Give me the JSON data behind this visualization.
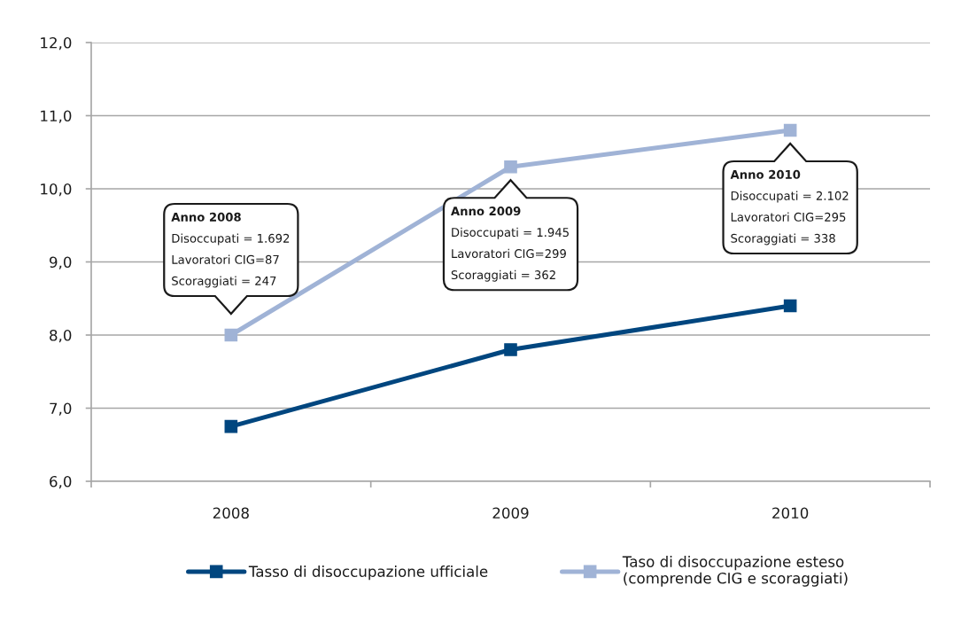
{
  "chart_data": {
    "type": "line",
    "categories": [
      "2008",
      "2009",
      "2010"
    ],
    "series": [
      {
        "name": "Tasso di disoccupazione ufficiale",
        "color": "#00467f",
        "values": [
          6.75,
          7.8,
          8.4
        ]
      },
      {
        "name": "Taso di disoccupazione esteso\n(comprende CIG e scoraggiati)",
        "color": "#a0b3d6",
        "values": [
          8.0,
          10.3,
          10.8
        ]
      }
    ],
    "ylim": [
      6,
      12
    ],
    "yticks": [
      {
        "value": 6,
        "label": "6,0"
      },
      {
        "value": 7,
        "label": "7,0"
      },
      {
        "value": 8,
        "label": "8,0"
      },
      {
        "value": 9,
        "label": "9,0"
      },
      {
        "value": 10,
        "label": "10,0"
      },
      {
        "value": 11,
        "label": "11,0"
      },
      {
        "value": 12,
        "label": "12,0"
      }
    ],
    "grid": "y",
    "legend": "bottom",
    "marker": "square",
    "line_style": "solid",
    "annotations": [
      "Anno 2008\nDisoccupati = 1.692\nLavoratori CIG=87\nScoraggiati = 247",
      "Anno 2009\nDisoccupati = 1.945\nLavoratori CIG=299\nScoraggiati = 362",
      "Anno 2010\nDisoccupati = 2.102\nLavoratori CIG=295\nScoraggiati = 338"
    ]
  }
}
